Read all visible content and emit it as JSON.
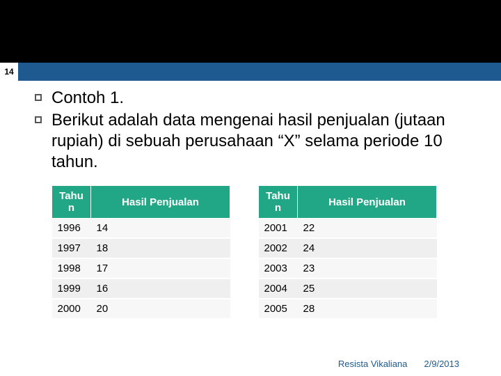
{
  "page_number": "14",
  "bullets": [
    "Contoh 1.",
    "Berikut adalah data mengenai hasil penjualan (jutaan rupiah) di sebuah perusahaan “X” selama periode 10 tahun."
  ],
  "table_headers": {
    "year": "Tahu n",
    "value": "Hasil Penjualan"
  },
  "table_left": {
    "rows": [
      {
        "year": "1996",
        "value": "14"
      },
      {
        "year": "1997",
        "value": "18"
      },
      {
        "year": "1998",
        "value": "17"
      },
      {
        "year": "1999",
        "value": "16"
      },
      {
        "year": "2000",
        "value": "20"
      }
    ]
  },
  "table_right": {
    "rows": [
      {
        "year": "2001",
        "value": "22"
      },
      {
        "year": "2002",
        "value": "24"
      },
      {
        "year": "2003",
        "value": "23"
      },
      {
        "year": "2004",
        "value": "25"
      },
      {
        "year": "2005",
        "value": "28"
      }
    ]
  },
  "footer": {
    "author": "Resista Vikaliana",
    "date": "2/9/2013"
  },
  "colors": {
    "header_bar": "#1e5a8f",
    "table_header_bg": "#21a786",
    "background": "#000000",
    "slide_bg": "#ffffff"
  }
}
